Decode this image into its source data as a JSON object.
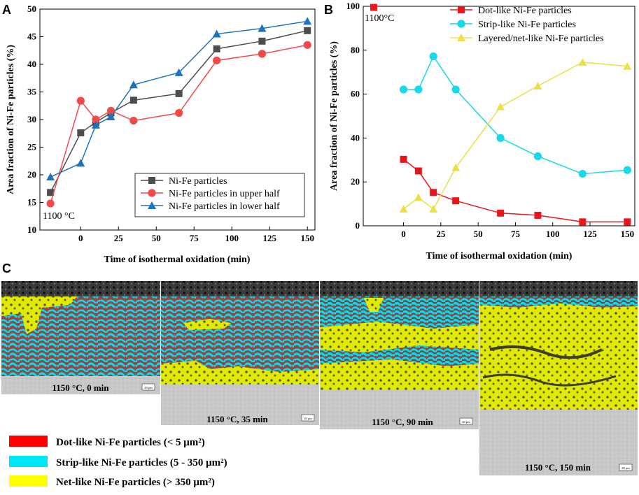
{
  "panels": {
    "a": "A",
    "b": "B",
    "c": "C"
  },
  "chart_data": [
    {
      "type": "line",
      "ylabel": "Area fraction of Ni-Fe particles (%)",
      "xlabel": "Time of isothermal oxidation (min)",
      "annotation": "1100 °C",
      "xlim": [
        -27,
        155
      ],
      "ylim": [
        10,
        50
      ],
      "xticks": [
        0,
        25,
        50,
        75,
        100,
        125,
        150
      ],
      "yticks": [
        10,
        15,
        20,
        25,
        30,
        35,
        40,
        45,
        50
      ],
      "x": [
        -20,
        0,
        10,
        20,
        35,
        65,
        90,
        120,
        150
      ],
      "legend_position": "bottom-right",
      "series": [
        {
          "name": "Ni-Fe particles",
          "color": "#4d4d4d",
          "marker": "square",
          "values": [
            16.8,
            27.6,
            29.5,
            31.2,
            33.5,
            34.7,
            42.8,
            44.2,
            46.1
          ]
        },
        {
          "name": "Ni-Fe particles in upper half",
          "color": "#f04a4a",
          "marker": "circle",
          "values": [
            14.8,
            33.4,
            30.0,
            31.6,
            29.8,
            31.2,
            40.7,
            41.9,
            43.5
          ]
        },
        {
          "name": "Ni-Fe particles in lower half",
          "color": "#1e73be",
          "marker": "triangle",
          "values": [
            19.6,
            22.1,
            29.0,
            30.5,
            36.3,
            38.5,
            45.5,
            46.5,
            47.8
          ]
        }
      ]
    },
    {
      "type": "line",
      "ylabel": "Area fraction of Ni-Fe particles (%)",
      "xlabel": "Time of isothermal oxidation (min)",
      "annotation": "1100°C",
      "xlim": [
        -27,
        155
      ],
      "ylim": [
        0,
        100
      ],
      "xticks": [
        0,
        25,
        50,
        75,
        100,
        125,
        150
      ],
      "yticks": [
        0,
        20,
        40,
        60,
        80,
        100
      ],
      "legend_position": "top-right",
      "series": [
        {
          "name": "Dot-like Ni-Fe particles",
          "color": "#e8161c",
          "marker": "square",
          "x": [
            0,
            10,
            20,
            35,
            65,
            90,
            120,
            150
          ],
          "values": [
            30.3,
            25.0,
            15.2,
            11.4,
            5.8,
            4.8,
            1.8,
            1.8
          ]
        },
        {
          "name": "Strip-like Ni-Fe particles",
          "color": "#19d8e8",
          "marker": "circle",
          "x": [
            0,
            10,
            20,
            35,
            65,
            90,
            120,
            150
          ],
          "values": [
            62.1,
            62.1,
            77.2,
            62.1,
            40.0,
            31.7,
            23.7,
            25.4
          ]
        },
        {
          "name": "Layered/net-like Ni-Fe particles",
          "color": "#ece04a",
          "marker": "triangle",
          "x": [
            0,
            10,
            20,
            35,
            65,
            90,
            120,
            150
          ],
          "values": [
            7.6,
            12.9,
            7.6,
            26.5,
            54.2,
            63.7,
            74.5,
            72.7
          ]
        },
        {
          "name": "",
          "color": "#e8161c",
          "marker": "square",
          "x": [
            -20
          ],
          "values": [
            99.5
          ]
        }
      ]
    }
  ],
  "micrographs": [
    {
      "label": "1150 °C, 0 min",
      "scale": "20 μm"
    },
    {
      "label": "1150 °C, 35 min",
      "scale": "20 μm"
    },
    {
      "label": "1150 °C, 90 min",
      "scale": "20 μm"
    },
    {
      "label": "1150 °C, 150 min",
      "scale": "20 μm"
    }
  ],
  "legend_c": [
    {
      "label": "Dot-like Ni-Fe particles (< 5 μm²)",
      "color": "#ff0000"
    },
    {
      "label": "Strip-like Ni-Fe particles (5 - 350 μm²)",
      "color": "#00e6f5"
    },
    {
      "label": "Net-like Ni-Fe particles (> 350 μm²)",
      "color": "#ffff00"
    }
  ]
}
